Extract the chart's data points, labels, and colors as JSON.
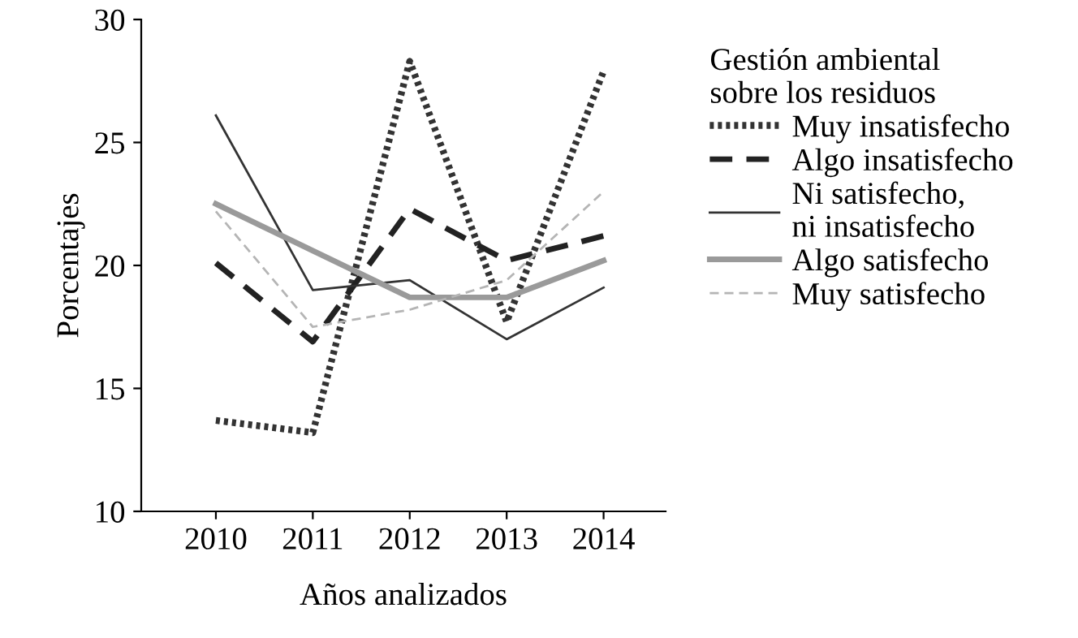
{
  "chart_data": {
    "type": "line",
    "xlabel": "Años analizados",
    "ylabel": "Porcentajes",
    "legend_title": "Gestión ambiental\nsobre los residuos",
    "legend": "right",
    "grid": false,
    "marker": "none",
    "categories": [
      "2010",
      "2011",
      "2012",
      "2013",
      "2014"
    ],
    "ylim": [
      10,
      30
    ],
    "yticks": [
      10,
      15,
      20,
      25,
      30
    ],
    "series": [
      {
        "name": "Muy insatisfecho",
        "color": "#333333",
        "line_style": "dotted",
        "values": [
          13.7,
          13.2,
          28.3,
          17.7,
          27.9
        ]
      },
      {
        "name": "Algo insatisfecho",
        "color": "#222222",
        "line_style": "dashed",
        "values": [
          20.1,
          16.9,
          22.3,
          20.2,
          21.2
        ]
      },
      {
        "name": "Ni satisfecho,\nni insatisfecho",
        "color": "#333333",
        "line_style": "solid",
        "values": [
          26.1,
          19.0,
          19.4,
          17.0,
          19.1
        ]
      },
      {
        "name": "Algo satisfecho",
        "color": "#9a9a9a",
        "line_style": "solid",
        "values": [
          22.5,
          20.6,
          18.7,
          18.7,
          20.2
        ]
      },
      {
        "name": "Muy satisfecho",
        "color": "#b5b5b5",
        "line_style": "dashed",
        "values": [
          22.2,
          17.5,
          18.2,
          19.4,
          23.0
        ]
      }
    ]
  }
}
